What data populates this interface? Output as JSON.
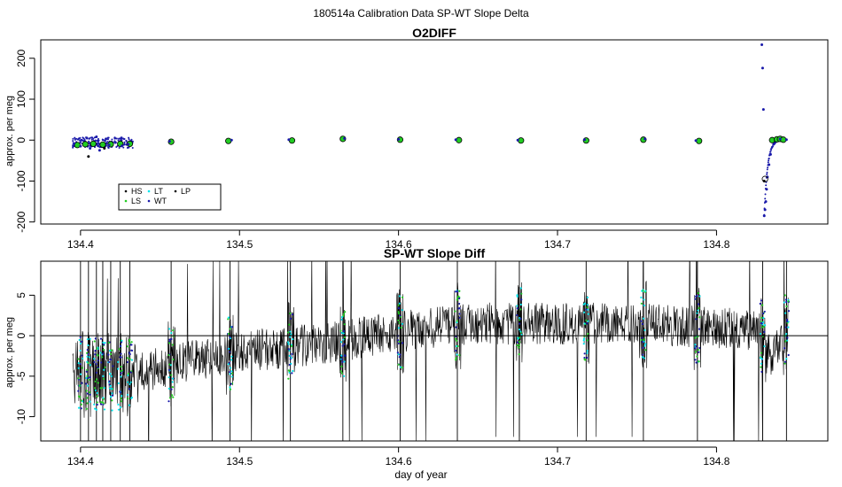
{
  "figure": {
    "title": "180514a   Calibration Data SP-WT Slope Delta",
    "xlabel": "day of year"
  },
  "chart_data": [
    {
      "type": "scatter",
      "title": "O2DIFF",
      "ylabel": "approx. per meg",
      "xlim": [
        134.375,
        134.87
      ],
      "ylim": [
        -205,
        245
      ],
      "x_ticks": [
        "134.4",
        "134.5",
        "134.6",
        "134.7",
        "134.8"
      ],
      "y_ticks": [
        "-200",
        "-100",
        "0",
        "100",
        "200"
      ],
      "zero_line": false,
      "legend": {
        "placement": "bottom-left",
        "entries": [
          {
            "label": "HS",
            "color": "#000000"
          },
          {
            "label": "LT",
            "color": "#00e5ee"
          },
          {
            "label": "LP",
            "color": "#000000"
          },
          {
            "label": "LS",
            "color": "#22cc22"
          },
          {
            "label": "WT",
            "color": "#1a1aaa"
          }
        ]
      },
      "series": [
        {
          "name": "LS",
          "color": "#22cc22",
          "marker": "circle",
          "x": [
            134.398,
            134.403,
            134.408,
            134.414,
            134.419,
            134.425,
            134.431,
            134.457,
            134.493,
            134.533,
            134.565,
            134.601,
            134.638,
            134.677,
            134.718,
            134.754,
            134.789,
            134.835,
            134.838,
            134.84,
            134.842
          ],
          "y": [
            -12,
            -10,
            -9,
            -11,
            -10,
            -9,
            -9,
            -4,
            -2,
            -1,
            3,
            1,
            0,
            -1,
            -1,
            1,
            -2,
            0,
            2,
            3,
            1
          ]
        },
        {
          "name": "WT",
          "color": "#1a1aaa",
          "marker": "dot",
          "x": [
            134.396,
            134.4,
            134.404,
            134.406,
            134.41,
            134.412,
            134.416,
            134.418,
            134.422,
            134.426,
            134.43,
            134.456,
            134.495,
            134.531,
            134.566,
            134.6,
            134.636,
            134.675,
            134.717,
            134.755,
            134.787,
            134.8285,
            134.829,
            134.8295,
            134.83,
            134.8305,
            134.831,
            134.8315,
            134.832,
            134.833,
            134.834,
            134.836,
            134.84,
            134.844
          ],
          "y": [
            -8,
            -15,
            5,
            -20,
            8,
            -25,
            3,
            -12,
            -6,
            -14,
            -10,
            -3,
            0,
            1,
            4,
            2,
            1,
            0,
            1,
            3,
            -1,
            233,
            176,
            75,
            -185,
            -170,
            -150,
            -120,
            -90,
            -60,
            -35,
            -10,
            3,
            1
          ]
        },
        {
          "name": "LP",
          "color": "#000000",
          "marker": "dot",
          "x": [
            134.405,
            134.415,
            134.83
          ],
          "y": [
            -40,
            -20,
            -100
          ]
        }
      ]
    },
    {
      "type": "line",
      "title": "SP-WT Slope Diff",
      "ylabel": "approx. per meg",
      "xlim": [
        134.375,
        134.87
      ],
      "ylim": [
        -13,
        9.2
      ],
      "x_ticks": [
        "134.4",
        "134.5",
        "134.6",
        "134.7",
        "134.8"
      ],
      "y_ticks": [
        "-10",
        "-5",
        "0",
        "5"
      ],
      "zero_line": true,
      "trend": {
        "x": [
          134.395,
          134.42,
          134.44,
          134.47,
          134.5,
          134.55,
          134.6,
          134.65,
          134.7,
          134.75,
          134.8,
          134.828,
          134.835,
          134.845
        ],
        "y": [
          -4.5,
          -5,
          -4.5,
          -3,
          -2,
          -1,
          0.5,
          1.5,
          1.5,
          1.5,
          1,
          0.5,
          -3,
          1
        ]
      },
      "calibration_days": [
        134.4,
        134.405,
        134.41,
        134.414,
        134.419,
        134.425,
        134.431,
        134.457,
        134.494,
        134.532,
        134.565,
        134.601,
        134.637,
        134.676,
        134.718,
        134.754,
        134.788,
        134.829,
        134.844
      ],
      "series": [
        {
          "name": "",
          "color": "#000000",
          "style": "line"
        },
        {
          "name": "LS",
          "color": "#22cc22",
          "style": "dots"
        },
        {
          "name": "LT",
          "color": "#00e5ee",
          "style": "dots"
        },
        {
          "name": "WT",
          "color": "#1a1aaa",
          "style": "dots"
        }
      ]
    }
  ]
}
